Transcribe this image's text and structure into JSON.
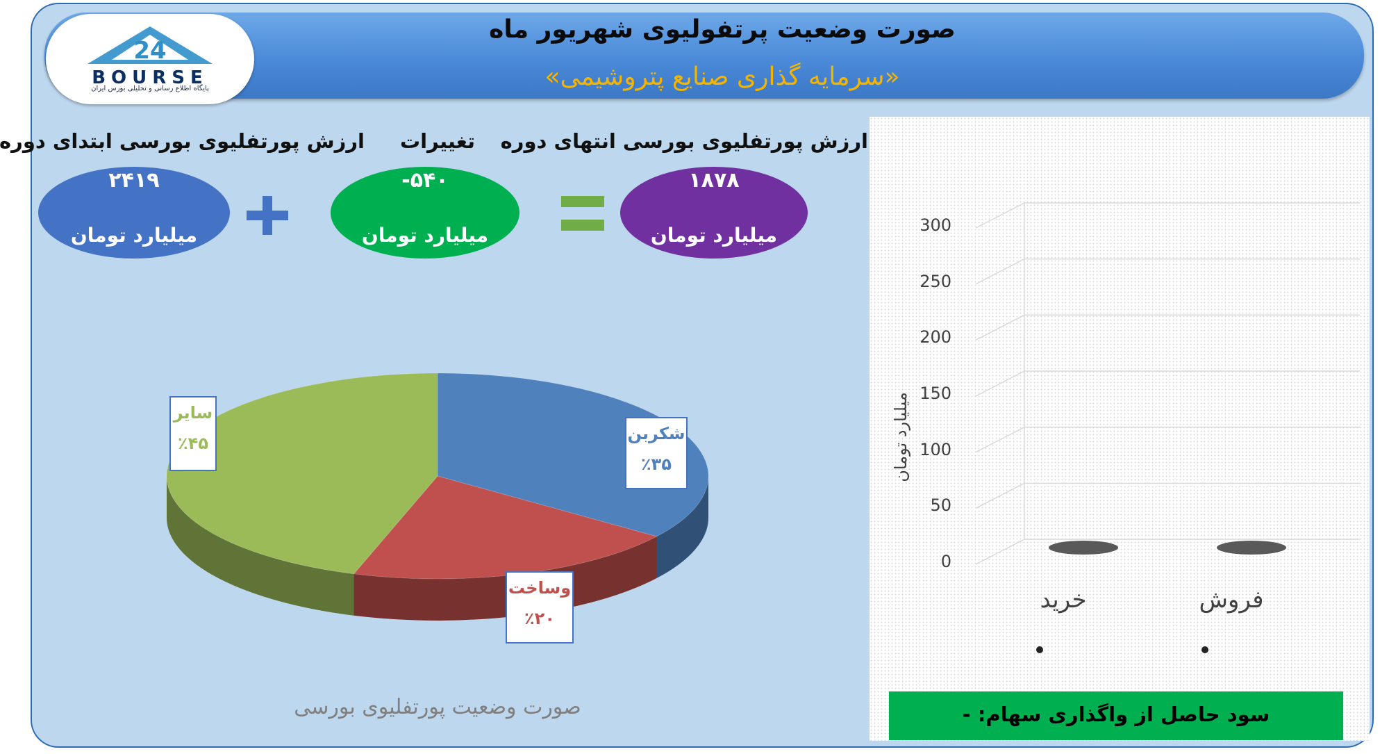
{
  "header": {
    "title": "صورت وضعیت پرتفولیوی شهریور ماه",
    "subtitle": "«سرمایه گذاری صنایع پتروشیمی»"
  },
  "logo": {
    "text": "BOURSE",
    "number": "24",
    "tagline": "پایگاه اطلاع رسانی و تحلیلی بورس ایران"
  },
  "summary": {
    "start_label": "ارزش پورتفلیوی بورسی ابتدای دوره",
    "start_value": "۲۴۱۹",
    "start_unit": "میلیارد تومان",
    "change_label": "تغییرات",
    "change_value": "-۵۴۰",
    "change_unit": "میلیارد تومان",
    "end_label": "ارزش پورتفلیوی بورسی انتهای دوره",
    "end_value": "۱۸۷۸",
    "end_unit": "میلیارد تومان",
    "colors": {
      "start": "#4472c4",
      "change": "#00b050",
      "end": "#7030a0"
    }
  },
  "chart_data": [
    {
      "type": "pie",
      "title": "صورت وضعیت پورتفلیوی بورسی",
      "slices": [
        {
          "name": "شکربن",
          "value": 35,
          "label": "٪۳۵",
          "color": "#4f81bd"
        },
        {
          "name": "وساخت",
          "value": 20,
          "label": "٪۲۰",
          "color": "#c0504d"
        },
        {
          "name": "سایر",
          "value": 45,
          "label": "٪۴۵",
          "color": "#9bbb59"
        }
      ]
    },
    {
      "type": "bar",
      "ylabel": "میلیارد تومان",
      "ylim": [
        0,
        300
      ],
      "yticks": [
        "0",
        "50",
        "100",
        "150",
        "200",
        "250",
        "300"
      ],
      "categories": [
        "خرید",
        "فروش"
      ],
      "values": [
        0,
        0
      ],
      "grid": true
    }
  ],
  "footer": {
    "profit_label": "سود حاصل از واگذاری سهام: -"
  }
}
